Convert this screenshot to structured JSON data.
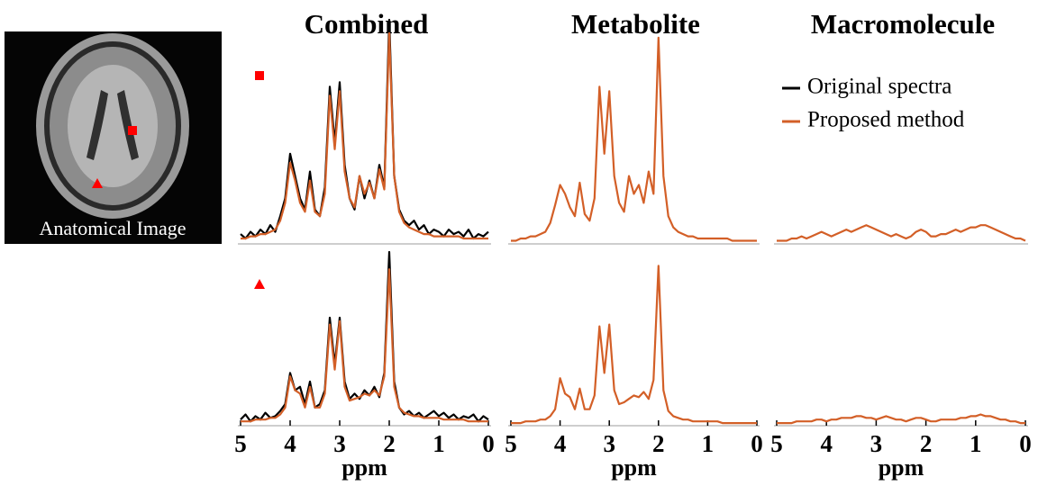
{
  "image": {
    "label": "Anatomical Image"
  },
  "chart_data": [
    {
      "type": "line",
      "title": "Combined",
      "x": [
        5,
        4.9,
        4.8,
        4.7,
        4.6,
        4.5,
        4.4,
        4.3,
        4.2,
        4.1,
        4,
        3.9,
        3.8,
        3.7,
        3.6,
        3.5,
        3.4,
        3.3,
        3.2,
        3.1,
        3,
        2.9,
        2.8,
        2.7,
        2.6,
        2.5,
        2.4,
        2.3,
        2.2,
        2.1,
        2,
        1.9,
        1.8,
        1.7,
        1.6,
        1.5,
        1.4,
        1.3,
        1.2,
        1.1,
        1,
        0.9,
        0.8,
        0.7,
        0.6,
        0.5,
        0.4,
        0.3,
        0.2,
        0.1,
        0
      ],
      "xlim": [
        5,
        0
      ],
      "ylim": [
        0,
        1
      ],
      "series": [
        {
          "name": "Original spectra",
          "color": "#000000",
          "values": [
            0.04,
            0.02,
            0.05,
            0.03,
            0.06,
            0.04,
            0.08,
            0.05,
            0.12,
            0.2,
            0.4,
            0.3,
            0.2,
            0.15,
            0.32,
            0.15,
            0.12,
            0.25,
            0.7,
            0.45,
            0.72,
            0.35,
            0.2,
            0.15,
            0.3,
            0.2,
            0.28,
            0.2,
            0.35,
            0.25,
            1.0,
            0.3,
            0.15,
            0.1,
            0.08,
            0.1,
            0.06,
            0.08,
            0.04,
            0.06,
            0.05,
            0.03,
            0.06,
            0.04,
            0.05,
            0.03,
            0.06,
            0.02,
            0.04,
            0.03,
            0.05
          ]
        },
        {
          "name": "Proposed method",
          "color": "#d35f27",
          "values": [
            0.02,
            0.02,
            0.03,
            0.03,
            0.04,
            0.04,
            0.05,
            0.06,
            0.1,
            0.18,
            0.36,
            0.28,
            0.18,
            0.14,
            0.28,
            0.14,
            0.12,
            0.22,
            0.66,
            0.42,
            0.68,
            0.32,
            0.2,
            0.16,
            0.3,
            0.22,
            0.27,
            0.2,
            0.33,
            0.24,
            0.94,
            0.3,
            0.14,
            0.09,
            0.07,
            0.06,
            0.05,
            0.04,
            0.04,
            0.03,
            0.03,
            0.03,
            0.03,
            0.03,
            0.03,
            0.02,
            0.02,
            0.02,
            0.02,
            0.02,
            0.02
          ]
        }
      ]
    },
    {
      "type": "line",
      "title": "Metabolite",
      "x": [
        5,
        4.9,
        4.8,
        4.7,
        4.6,
        4.5,
        4.4,
        4.3,
        4.2,
        4.1,
        4,
        3.9,
        3.8,
        3.7,
        3.6,
        3.5,
        3.4,
        3.3,
        3.2,
        3.1,
        3,
        2.9,
        2.8,
        2.7,
        2.6,
        2.5,
        2.4,
        2.3,
        2.2,
        2.1,
        2,
        1.9,
        1.8,
        1.7,
        1.6,
        1.5,
        1.4,
        1.3,
        1.2,
        1.1,
        1,
        0.9,
        0.8,
        0.7,
        0.6,
        0.5,
        0.4,
        0.3,
        0.2,
        0.1,
        0
      ],
      "xlim": [
        5,
        0
      ],
      "ylim": [
        0,
        1
      ],
      "series": [
        {
          "color": "#d35f27",
          "values": [
            0.01,
            0.01,
            0.02,
            0.02,
            0.03,
            0.03,
            0.04,
            0.05,
            0.09,
            0.17,
            0.26,
            0.22,
            0.16,
            0.12,
            0.27,
            0.13,
            0.1,
            0.2,
            0.7,
            0.4,
            0.68,
            0.3,
            0.18,
            0.14,
            0.3,
            0.22,
            0.26,
            0.18,
            0.32,
            0.22,
            0.92,
            0.3,
            0.12,
            0.07,
            0.05,
            0.04,
            0.03,
            0.03,
            0.02,
            0.02,
            0.02,
            0.02,
            0.02,
            0.02,
            0.02,
            0.01,
            0.01,
            0.01,
            0.01,
            0.01,
            0.01
          ]
        }
      ]
    },
    {
      "type": "line",
      "title": "Macromolecule",
      "x": [
        5,
        4.9,
        4.8,
        4.7,
        4.6,
        4.5,
        4.4,
        4.3,
        4.2,
        4.1,
        4,
        3.9,
        3.8,
        3.7,
        3.6,
        3.5,
        3.4,
        3.3,
        3.2,
        3.1,
        3,
        2.9,
        2.8,
        2.7,
        2.6,
        2.5,
        2.4,
        2.3,
        2.2,
        2.1,
        2,
        1.9,
        1.8,
        1.7,
        1.6,
        1.5,
        1.4,
        1.3,
        1.2,
        1.1,
        1,
        0.9,
        0.8,
        0.7,
        0.6,
        0.5,
        0.4,
        0.3,
        0.2,
        0.1,
        0
      ],
      "xlim": [
        5,
        0
      ],
      "ylim": [
        0,
        1
      ],
      "series": [
        {
          "color": "#d35f27",
          "values": [
            0.01,
            0.01,
            0.01,
            0.02,
            0.02,
            0.03,
            0.02,
            0.03,
            0.04,
            0.05,
            0.04,
            0.03,
            0.04,
            0.05,
            0.06,
            0.05,
            0.06,
            0.07,
            0.08,
            0.07,
            0.06,
            0.05,
            0.04,
            0.03,
            0.04,
            0.03,
            0.02,
            0.03,
            0.05,
            0.06,
            0.05,
            0.03,
            0.03,
            0.04,
            0.04,
            0.05,
            0.06,
            0.05,
            0.06,
            0.07,
            0.07,
            0.08,
            0.08,
            0.07,
            0.06,
            0.05,
            0.04,
            0.03,
            0.02,
            0.02,
            0.01
          ]
        }
      ]
    },
    {
      "type": "line",
      "xlabel": "ppm",
      "x": [
        5,
        4.9,
        4.8,
        4.7,
        4.6,
        4.5,
        4.4,
        4.3,
        4.2,
        4.1,
        4,
        3.9,
        3.8,
        3.7,
        3.6,
        3.5,
        3.4,
        3.3,
        3.2,
        3.1,
        3,
        2.9,
        2.8,
        2.7,
        2.6,
        2.5,
        2.4,
        2.3,
        2.2,
        2.1,
        2,
        1.9,
        1.8,
        1.7,
        1.6,
        1.5,
        1.4,
        1.3,
        1.2,
        1.1,
        1,
        0.9,
        0.8,
        0.7,
        0.6,
        0.5,
        0.4,
        0.3,
        0.2,
        0.1,
        0
      ],
      "xlim": [
        5,
        0
      ],
      "xticks": [
        5,
        4,
        3,
        2,
        1,
        0
      ],
      "ylim": [
        0,
        1
      ],
      "series": [
        {
          "color": "#000000",
          "values": [
            0.03,
            0.06,
            0.02,
            0.05,
            0.03,
            0.07,
            0.04,
            0.05,
            0.08,
            0.12,
            0.3,
            0.2,
            0.22,
            0.12,
            0.25,
            0.1,
            0.12,
            0.2,
            0.62,
            0.35,
            0.62,
            0.25,
            0.15,
            0.18,
            0.15,
            0.2,
            0.17,
            0.22,
            0.16,
            0.3,
            1.0,
            0.25,
            0.1,
            0.06,
            0.08,
            0.05,
            0.07,
            0.04,
            0.06,
            0.08,
            0.05,
            0.07,
            0.04,
            0.06,
            0.03,
            0.05,
            0.04,
            0.06,
            0.02,
            0.05,
            0.03
          ]
        },
        {
          "color": "#d35f27",
          "values": [
            0.02,
            0.02,
            0.02,
            0.03,
            0.03,
            0.03,
            0.04,
            0.04,
            0.06,
            0.1,
            0.28,
            0.2,
            0.18,
            0.1,
            0.22,
            0.1,
            0.1,
            0.18,
            0.58,
            0.32,
            0.6,
            0.22,
            0.14,
            0.15,
            0.16,
            0.18,
            0.17,
            0.2,
            0.17,
            0.28,
            0.9,
            0.22,
            0.1,
            0.07,
            0.06,
            0.05,
            0.05,
            0.04,
            0.04,
            0.04,
            0.04,
            0.03,
            0.03,
            0.03,
            0.03,
            0.03,
            0.02,
            0.02,
            0.02,
            0.02,
            0.02
          ]
        }
      ]
    },
    {
      "type": "line",
      "xlabel": "ppm",
      "x": [
        5,
        4.9,
        4.8,
        4.7,
        4.6,
        4.5,
        4.4,
        4.3,
        4.2,
        4.1,
        4,
        3.9,
        3.8,
        3.7,
        3.6,
        3.5,
        3.4,
        3.3,
        3.2,
        3.1,
        3,
        2.9,
        2.8,
        2.7,
        2.6,
        2.5,
        2.4,
        2.3,
        2.2,
        2.1,
        2,
        1.9,
        1.8,
        1.7,
        1.6,
        1.5,
        1.4,
        1.3,
        1.2,
        1.1,
        1,
        0.9,
        0.8,
        0.7,
        0.6,
        0.5,
        0.4,
        0.3,
        0.2,
        0.1,
        0
      ],
      "xlim": [
        5,
        0
      ],
      "xticks": [
        5,
        4,
        3,
        2,
        1,
        0
      ],
      "ylim": [
        0,
        1
      ],
      "series": [
        {
          "color": "#d35f27",
          "values": [
            0.01,
            0.01,
            0.01,
            0.02,
            0.02,
            0.02,
            0.03,
            0.03,
            0.05,
            0.09,
            0.27,
            0.18,
            0.16,
            0.09,
            0.21,
            0.09,
            0.09,
            0.17,
            0.57,
            0.3,
            0.58,
            0.2,
            0.12,
            0.13,
            0.15,
            0.17,
            0.16,
            0.19,
            0.15,
            0.26,
            0.92,
            0.2,
            0.08,
            0.05,
            0.04,
            0.03,
            0.03,
            0.02,
            0.02,
            0.02,
            0.02,
            0.02,
            0.02,
            0.01,
            0.01,
            0.01,
            0.01,
            0.01,
            0.01,
            0.01,
            0.01
          ]
        }
      ]
    },
    {
      "type": "line",
      "xlabel": "ppm",
      "x": [
        5,
        4.9,
        4.8,
        4.7,
        4.6,
        4.5,
        4.4,
        4.3,
        4.2,
        4.1,
        4,
        3.9,
        3.8,
        3.7,
        3.6,
        3.5,
        3.4,
        3.3,
        3.2,
        3.1,
        3,
        2.9,
        2.8,
        2.7,
        2.6,
        2.5,
        2.4,
        2.3,
        2.2,
        2.1,
        2,
        1.9,
        1.8,
        1.7,
        1.6,
        1.5,
        1.4,
        1.3,
        1.2,
        1.1,
        1,
        0.9,
        0.8,
        0.7,
        0.6,
        0.5,
        0.4,
        0.3,
        0.2,
        0.1,
        0
      ],
      "xlim": [
        5,
        0
      ],
      "xticks": [
        5,
        4,
        3,
        2,
        1,
        0
      ],
      "ylim": [
        0,
        1
      ],
      "series": [
        {
          "color": "#d35f27",
          "values": [
            0.01,
            0.01,
            0.01,
            0.01,
            0.02,
            0.02,
            0.02,
            0.02,
            0.03,
            0.03,
            0.02,
            0.03,
            0.03,
            0.04,
            0.04,
            0.04,
            0.05,
            0.05,
            0.04,
            0.04,
            0.03,
            0.04,
            0.05,
            0.04,
            0.03,
            0.03,
            0.02,
            0.03,
            0.04,
            0.04,
            0.03,
            0.02,
            0.02,
            0.03,
            0.03,
            0.03,
            0.03,
            0.04,
            0.04,
            0.05,
            0.05,
            0.06,
            0.05,
            0.05,
            0.04,
            0.03,
            0.03,
            0.02,
            0.02,
            0.01,
            0.01
          ]
        }
      ]
    }
  ]
}
